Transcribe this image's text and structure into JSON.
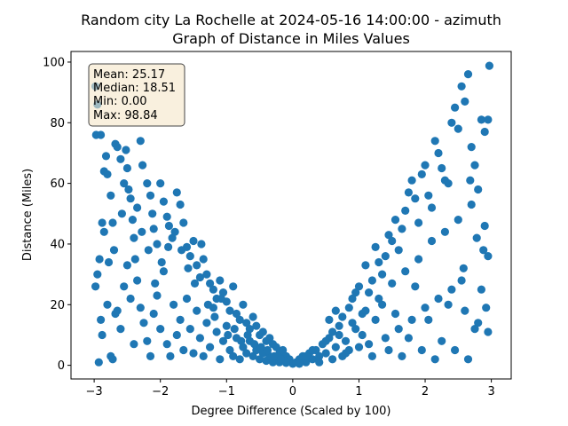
{
  "chart_data": {
    "type": "scatter",
    "title_line1": "Random city La Rochelle at 2024-05-16 14:00:00  - azimuth",
    "title_line2": "Graph of Distance in Miles Values",
    "xlabel": "Degree Difference (Scaled by 100)",
    "ylabel": "Distance (Miles)",
    "xlim": [
      -3.35,
      3.3
    ],
    "ylim": [
      -4.5,
      103.5
    ],
    "xticks": [
      -3,
      -2,
      -1,
      0,
      1,
      2,
      3
    ],
    "yticks": [
      0,
      20,
      40,
      60,
      80,
      100
    ],
    "xtick_labels": [
      "−3",
      "−2",
      "−1",
      "0",
      "1",
      "2",
      "3"
    ],
    "ytick_labels": [
      "0",
      "20",
      "40",
      "60",
      "80",
      "100"
    ],
    "grid": false,
    "point_color": "#1f77b4",
    "stats_box": {
      "mean": "Mean: 25.17",
      "median": "Median: 18.51",
      "min": "Min: 0.00",
      "max": "Max: 98.84",
      "facecolor": "#f5e6c8",
      "edgecolor": "#444444",
      "placement": "top-left"
    },
    "points": [
      [
        -2.98,
        92
      ],
      [
        -2.95,
        86
      ],
      [
        -2.97,
        76
      ],
      [
        -2.9,
        76
      ],
      [
        -2.85,
        64
      ],
      [
        -2.82,
        69
      ],
      [
        -2.8,
        63
      ],
      [
        -2.75,
        56
      ],
      [
        -2.72,
        47
      ],
      [
        -2.7,
        38
      ],
      [
        -2.68,
        73
      ],
      [
        -2.65,
        72
      ],
      [
        -2.6,
        68
      ],
      [
        -2.55,
        60
      ],
      [
        -2.52,
        71
      ],
      [
        -2.5,
        65
      ],
      [
        -2.45,
        55
      ],
      [
        -2.42,
        48
      ],
      [
        -2.4,
        42
      ],
      [
        -2.35,
        52
      ],
      [
        -2.3,
        74
      ],
      [
        -2.27,
        66
      ],
      [
        -2.2,
        60
      ],
      [
        -2.15,
        56
      ],
      [
        -2.12,
        50
      ],
      [
        -2.1,
        45
      ],
      [
        -2.05,
        40
      ],
      [
        -2.0,
        60
      ],
      [
        -1.95,
        54
      ],
      [
        -1.9,
        49
      ],
      [
        -1.87,
        46
      ],
      [
        -1.82,
        42
      ],
      [
        -1.75,
        57
      ],
      [
        -1.7,
        53
      ],
      [
        -1.65,
        47
      ],
      [
        -1.6,
        39
      ],
      [
        -1.55,
        36
      ],
      [
        -1.5,
        41
      ],
      [
        -1.45,
        33
      ],
      [
        -1.4,
        29
      ],
      [
        -1.35,
        35
      ],
      [
        -1.3,
        30
      ],
      [
        -1.25,
        27
      ],
      [
        -1.2,
        25
      ],
      [
        -1.15,
        22
      ],
      [
        -1.1,
        28
      ],
      [
        -1.05,
        24
      ],
      [
        -1.0,
        21
      ],
      [
        -0.95,
        18
      ],
      [
        -0.9,
        26
      ],
      [
        -0.85,
        17
      ],
      [
        -0.8,
        15
      ],
      [
        -0.75,
        20
      ],
      [
        -0.7,
        14
      ],
      [
        -0.65,
        12
      ],
      [
        -0.6,
        16
      ],
      [
        -0.55,
        13
      ],
      [
        -0.5,
        10
      ],
      [
        -0.45,
        11
      ],
      [
        -0.4,
        8
      ],
      [
        -0.35,
        9
      ],
      [
        -0.3,
        7
      ],
      [
        -0.25,
        6
      ],
      [
        -0.2,
        4
      ],
      [
        -0.15,
        5
      ],
      [
        -0.1,
        3
      ],
      [
        -0.05,
        2
      ],
      [
        0.0,
        0.5
      ],
      [
        -2.95,
        30
      ],
      [
        -2.92,
        35
      ],
      [
        -2.9,
        15
      ],
      [
        -2.88,
        10
      ],
      [
        -2.85,
        44
      ],
      [
        -2.8,
        20
      ],
      [
        -2.75,
        3
      ],
      [
        -2.72,
        2
      ],
      [
        -2.65,
        18
      ],
      [
        -2.6,
        12
      ],
      [
        -2.55,
        26
      ],
      [
        -2.5,
        33
      ],
      [
        -2.45,
        22
      ],
      [
        -2.4,
        7
      ],
      [
        -2.35,
        28
      ],
      [
        -2.3,
        19
      ],
      [
        -2.25,
        14
      ],
      [
        -2.2,
        8
      ],
      [
        -2.15,
        3
      ],
      [
        -2.1,
        17
      ],
      [
        -2.05,
        23
      ],
      [
        -2.0,
        12
      ],
      [
        -1.95,
        31
      ],
      [
        -1.9,
        7
      ],
      [
        -1.85,
        3
      ],
      [
        -1.8,
        20
      ],
      [
        -1.75,
        10
      ],
      [
        -1.7,
        15
      ],
      [
        -1.65,
        5
      ],
      [
        -1.6,
        22
      ],
      [
        -1.55,
        12
      ],
      [
        -1.5,
        4
      ],
      [
        -1.45,
        18
      ],
      [
        -1.4,
        9
      ],
      [
        -1.35,
        3
      ],
      [
        -1.3,
        14
      ],
      [
        -1.25,
        6
      ],
      [
        -1.2,
        19
      ],
      [
        -1.15,
        11
      ],
      [
        -1.1,
        2
      ],
      [
        -1.05,
        8
      ],
      [
        -1.0,
        13
      ],
      [
        -0.95,
        5
      ],
      [
        -0.9,
        3
      ],
      [
        -0.85,
        9
      ],
      [
        -0.8,
        2
      ],
      [
        -0.75,
        6
      ],
      [
        -0.7,
        4
      ],
      [
        -0.65,
        8
      ],
      [
        -0.6,
        3
      ],
      [
        -0.55,
        5
      ],
      [
        -0.5,
        2
      ],
      [
        -0.45,
        4
      ],
      [
        -0.4,
        1.5
      ],
      [
        -0.35,
        3
      ],
      [
        -0.3,
        1
      ],
      [
        -0.25,
        2
      ],
      [
        -0.2,
        1
      ],
      [
        -0.15,
        2
      ],
      [
        -0.1,
        0.8
      ],
      [
        -2.98,
        26
      ],
      [
        -2.93,
        1
      ],
      [
        -2.88,
        47
      ],
      [
        -2.78,
        34
      ],
      [
        -2.68,
        17
      ],
      [
        -2.58,
        50
      ],
      [
        -2.48,
        58
      ],
      [
        -2.38,
        35
      ],
      [
        -2.28,
        44
      ],
      [
        -2.18,
        38
      ],
      [
        -2.08,
        27
      ],
      [
        -1.98,
        34
      ],
      [
        -1.88,
        39
      ],
      [
        -1.78,
        44
      ],
      [
        -1.68,
        38
      ],
      [
        -1.58,
        32
      ],
      [
        -1.48,
        27
      ],
      [
        -1.38,
        40
      ],
      [
        -1.28,
        20
      ],
      [
        -1.18,
        16
      ],
      [
        -1.08,
        22
      ],
      [
        -0.98,
        10
      ],
      [
        -0.88,
        12
      ],
      [
        -0.78,
        8
      ],
      [
        -0.68,
        10
      ],
      [
        -0.58,
        7
      ],
      [
        -0.48,
        6
      ],
      [
        -0.38,
        5
      ],
      [
        -0.28,
        3
      ],
      [
        -0.18,
        2
      ],
      [
        0.05,
        1
      ],
      [
        0.1,
        2
      ],
      [
        0.15,
        3
      ],
      [
        0.2,
        1
      ],
      [
        0.25,
        4
      ],
      [
        0.3,
        2
      ],
      [
        0.35,
        5
      ],
      [
        0.4,
        3
      ],
      [
        0.45,
        7
      ],
      [
        0.5,
        4
      ],
      [
        0.55,
        9
      ],
      [
        0.6,
        11
      ],
      [
        0.65,
        6
      ],
      [
        0.7,
        13
      ],
      [
        0.75,
        16
      ],
      [
        0.8,
        8
      ],
      [
        0.85,
        19
      ],
      [
        0.9,
        22
      ],
      [
        0.95,
        12
      ],
      [
        1.0,
        26
      ],
      [
        1.05,
        17
      ],
      [
        1.1,
        33
      ],
      [
        1.15,
        24
      ],
      [
        1.2,
        28
      ],
      [
        1.25,
        39
      ],
      [
        1.3,
        34
      ],
      [
        1.35,
        30
      ],
      [
        1.4,
        36
      ],
      [
        1.45,
        43
      ],
      [
        1.5,
        41
      ],
      [
        1.55,
        48
      ],
      [
        1.6,
        38
      ],
      [
        1.65,
        45
      ],
      [
        1.7,
        51
      ],
      [
        1.75,
        57
      ],
      [
        1.8,
        61
      ],
      [
        1.85,
        55
      ],
      [
        1.9,
        47
      ],
      [
        1.95,
        63
      ],
      [
        2.0,
        66
      ],
      [
        2.05,
        56
      ],
      [
        2.1,
        52
      ],
      [
        2.15,
        74
      ],
      [
        2.2,
        70
      ],
      [
        2.25,
        65
      ],
      [
        2.3,
        61
      ],
      [
        2.35,
        60
      ],
      [
        2.4,
        80
      ],
      [
        2.45,
        85
      ],
      [
        2.5,
        78
      ],
      [
        2.55,
        92
      ],
      [
        2.6,
        87
      ],
      [
        2.65,
        96
      ],
      [
        2.7,
        72
      ],
      [
        2.75,
        66
      ],
      [
        2.8,
        58
      ],
      [
        2.85,
        81
      ],
      [
        2.9,
        77
      ],
      [
        2.95,
        81
      ],
      [
        2.97,
        98.8
      ],
      [
        0.1,
        0.5
      ],
      [
        0.2,
        3
      ],
      [
        0.3,
        5
      ],
      [
        0.4,
        1
      ],
      [
        0.5,
        8
      ],
      [
        0.6,
        2
      ],
      [
        0.7,
        10
      ],
      [
        0.8,
        4
      ],
      [
        0.9,
        14
      ],
      [
        1.0,
        6
      ],
      [
        1.1,
        18
      ],
      [
        1.2,
        3
      ],
      [
        1.3,
        22
      ],
      [
        1.4,
        9
      ],
      [
        1.5,
        27
      ],
      [
        1.6,
        12
      ],
      [
        1.7,
        31
      ],
      [
        1.8,
        15
      ],
      [
        1.9,
        35
      ],
      [
        2.0,
        19
      ],
      [
        2.1,
        41
      ],
      [
        2.2,
        22
      ],
      [
        2.3,
        44
      ],
      [
        2.4,
        25
      ],
      [
        2.5,
        48
      ],
      [
        2.6,
        18
      ],
      [
        2.7,
        53
      ],
      [
        2.8,
        14
      ],
      [
        2.9,
        46
      ],
      [
        2.95,
        36
      ],
      [
        0.55,
        15
      ],
      [
        0.65,
        18
      ],
      [
        0.75,
        3
      ],
      [
        0.85,
        5
      ],
      [
        0.95,
        24
      ],
      [
        1.05,
        10
      ],
      [
        1.15,
        7
      ],
      [
        1.25,
        15
      ],
      [
        1.35,
        20
      ],
      [
        1.45,
        5
      ],
      [
        1.55,
        17
      ],
      [
        1.65,
        3
      ],
      [
        1.75,
        9
      ],
      [
        1.85,
        26
      ],
      [
        1.95,
        5
      ],
      [
        2.05,
        15
      ],
      [
        2.15,
        2
      ],
      [
        2.25,
        8
      ],
      [
        2.35,
        20
      ],
      [
        2.45,
        5
      ],
      [
        2.55,
        28
      ],
      [
        2.65,
        2
      ],
      [
        2.75,
        12
      ],
      [
        2.85,
        25
      ],
      [
        2.95,
        11
      ],
      [
        2.92,
        19
      ],
      [
        2.88,
        38
      ],
      [
        2.78,
        42
      ],
      [
        2.68,
        61
      ],
      [
        2.58,
        32
      ]
    ]
  }
}
